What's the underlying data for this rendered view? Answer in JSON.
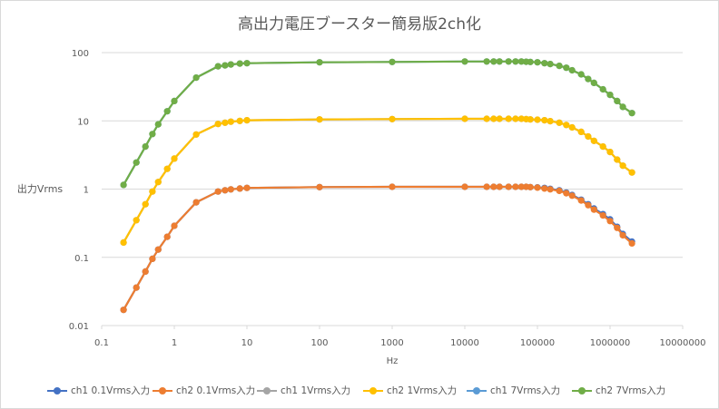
{
  "chart_data": {
    "type": "line",
    "title": "高出力電圧ブースター簡易版2ch化",
    "xlabel": "Hz",
    "ylabel": "出力Vrms",
    "xscale": "log",
    "yscale": "log",
    "xlim": [
      0.1,
      10000000
    ],
    "ylim": [
      0.01,
      100
    ],
    "x_ticks": [
      "0.1",
      "1",
      "10",
      "100",
      "1000",
      "10000",
      "100000",
      "1000000",
      "10000000"
    ],
    "y_ticks": [
      "0.01",
      "0.1",
      "1",
      "10",
      "100"
    ],
    "grid": "horizontal",
    "legend_position": "bottom",
    "x": [
      0.2,
      0.3,
      0.4,
      0.5,
      0.6,
      0.8,
      1,
      2,
      4,
      5,
      6,
      8,
      10,
      100,
      1000,
      10000,
      20000,
      25000,
      30000,
      40000,
      50000,
      60000,
      70000,
      80000,
      100000,
      125000,
      150000,
      200000,
      250000,
      300000,
      400000,
      500000,
      600000,
      800000,
      1000000,
      1250000,
      1500000,
      2000000
    ],
    "series": [
      {
        "name": "ch1 0.1Vrms入力",
        "color": "#4472c4",
        "values": [
          0.017,
          0.036,
          0.062,
          0.095,
          0.13,
          0.2,
          0.29,
          0.64,
          0.92,
          0.96,
          0.99,
          1.02,
          1.04,
          1.07,
          1.08,
          1.08,
          1.08,
          1.08,
          1.08,
          1.08,
          1.08,
          1.08,
          1.08,
          1.07,
          1.06,
          1.04,
          1.01,
          0.96,
          0.89,
          0.82,
          0.7,
          0.6,
          0.52,
          0.43,
          0.36,
          0.28,
          0.22,
          0.17
        ]
      },
      {
        "name": "ch2 0.1Vrms入力",
        "color": "#ed7d31",
        "values": [
          0.017,
          0.036,
          0.062,
          0.095,
          0.13,
          0.2,
          0.29,
          0.64,
          0.92,
          0.96,
          0.99,
          1.02,
          1.04,
          1.07,
          1.08,
          1.08,
          1.08,
          1.08,
          1.08,
          1.08,
          1.08,
          1.08,
          1.08,
          1.07,
          1.05,
          1.02,
          0.99,
          0.94,
          0.87,
          0.8,
          0.68,
          0.58,
          0.5,
          0.41,
          0.34,
          0.27,
          0.21,
          0.16
        ]
      },
      {
        "name": "ch1 1Vrms入力",
        "color": "#a5a5a5",
        "values": [
          0.165,
          0.35,
          0.6,
          0.92,
          1.27,
          1.98,
          2.8,
          6.3,
          9.0,
          9.4,
          9.7,
          10.0,
          10.2,
          10.5,
          10.6,
          10.7,
          10.7,
          10.7,
          10.7,
          10.7,
          10.7,
          10.7,
          10.6,
          10.5,
          10.4,
          10.2,
          9.9,
          9.4,
          8.7,
          8.0,
          6.9,
          5.9,
          5.1,
          4.2,
          3.5,
          2.7,
          2.2,
          1.75
        ]
      },
      {
        "name": "ch2 1Vrms入力",
        "color": "#ffc000",
        "values": [
          0.165,
          0.35,
          0.6,
          0.92,
          1.27,
          1.98,
          2.8,
          6.3,
          9.0,
          9.4,
          9.7,
          10.0,
          10.2,
          10.5,
          10.6,
          10.7,
          10.7,
          10.7,
          10.7,
          10.7,
          10.7,
          10.7,
          10.6,
          10.5,
          10.4,
          10.2,
          9.9,
          9.4,
          8.7,
          8.0,
          6.9,
          5.9,
          5.1,
          4.2,
          3.5,
          2.7,
          2.2,
          1.75
        ]
      },
      {
        "name": "ch1 7Vrms入力",
        "color": "#5b9bd5",
        "values": [
          1.15,
          2.45,
          4.2,
          6.4,
          8.9,
          13.8,
          19.5,
          43,
          63,
          65,
          67,
          69,
          70,
          72,
          73,
          74,
          74,
          74,
          74,
          74,
          74,
          74,
          73.5,
          73,
          72,
          70,
          68,
          64,
          60,
          55,
          48,
          41,
          36,
          29,
          24,
          19.5,
          16,
          13
        ]
      },
      {
        "name": "ch2 7Vrms入力",
        "color": "#70ad47",
        "values": [
          1.15,
          2.45,
          4.2,
          6.4,
          8.9,
          13.8,
          19.5,
          43,
          63,
          65,
          67,
          69,
          70,
          72,
          73,
          74,
          74,
          74,
          74,
          74,
          74,
          74,
          73.5,
          73,
          72,
          70,
          68,
          64,
          60,
          55,
          48,
          41,
          36,
          29,
          24,
          19.5,
          16,
          13
        ]
      }
    ]
  }
}
